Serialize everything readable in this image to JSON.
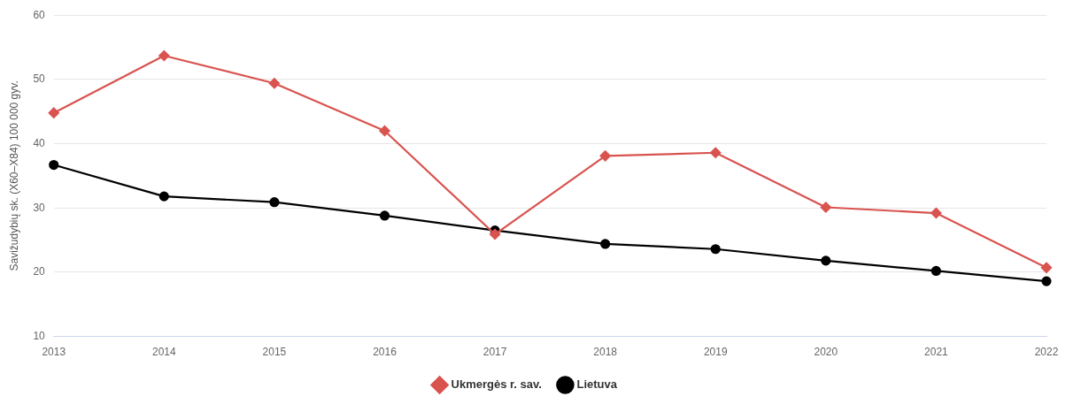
{
  "chart_data": {
    "type": "line",
    "categories": [
      "2013",
      "2014",
      "2015",
      "2016",
      "2017",
      "2018",
      "2019",
      "2020",
      "2021",
      "2022"
    ],
    "ylabel": "Savižudybių sk. (X60–X84) 100 000 gyv.",
    "ylim": [
      10,
      60
    ],
    "yticks": [
      10,
      20,
      30,
      40,
      50,
      60
    ],
    "grid": "y",
    "legend": "bottom",
    "series": [
      {
        "name": "Lietuva",
        "color": "#000000",
        "marker": "circle",
        "values": [
          36.7,
          31.8,
          30.9,
          28.8,
          26.5,
          24.4,
          23.6,
          21.8,
          20.2,
          18.6
        ]
      },
      {
        "name": "Ukmergės r. sav.",
        "color": "#d9534f",
        "marker": "diamond",
        "values": [
          44.8,
          53.7,
          49.4,
          42.0,
          25.9,
          38.1,
          38.6,
          30.1,
          29.2,
          20.7
        ]
      }
    ]
  }
}
